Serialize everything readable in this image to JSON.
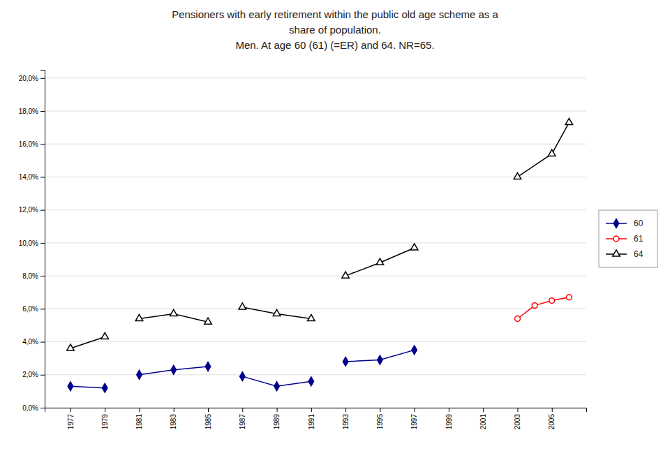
{
  "chart_data": {
    "type": "line",
    "title": "Pensioners with early retirement within the public old age scheme as a\nshare of population.\nMen. At age 60 (61) (=ER) and 64. NR=65.",
    "series": [
      {
        "name": "60",
        "color": "#00008B",
        "marker": "diamond",
        "line_style": "solid",
        "x": [
          1977,
          1979,
          null,
          1981,
          1983,
          1985,
          null,
          1987,
          1989,
          1991,
          null,
          1993,
          1995,
          1997
        ],
        "values": [
          0.013,
          0.012,
          null,
          0.02,
          0.023,
          0.025,
          null,
          0.019,
          0.013,
          0.016,
          null,
          0.028,
          0.029,
          0.035
        ]
      },
      {
        "name": "61",
        "color": "#FF0000",
        "marker": "circle-open",
        "line_style": "solid",
        "x": [
          2003,
          2004,
          2005,
          2006
        ],
        "values": [
          0.054,
          0.062,
          0.065,
          0.067
        ]
      },
      {
        "name": "64",
        "color": "#000000",
        "marker": "triangle-open",
        "line_style": "solid",
        "x": [
          1977,
          1979,
          null,
          1981,
          1983,
          1985,
          null,
          1987,
          1989,
          1991,
          null,
          1993,
          1995,
          1997,
          null,
          2003,
          2005,
          2006
        ],
        "values": [
          0.036,
          0.043,
          null,
          0.054,
          0.057,
          0.052,
          null,
          0.061,
          0.057,
          0.054,
          null,
          0.08,
          0.088,
          0.097,
          null,
          0.14,
          0.154,
          0.173
        ]
      }
    ],
    "xlim": [
      1975.5,
      2007.0
    ],
    "xticks": [
      1977,
      1979,
      1981,
      1983,
      1985,
      1987,
      1989,
      1991,
      1993,
      1995,
      1997,
      1999,
      2001,
      2003,
      2005
    ],
    "ylim": [
      0.0,
      0.205
    ],
    "yticks": [
      {
        "value": 0.0,
        "label": "0,0%"
      },
      {
        "value": 0.02,
        "label": "2,0%"
      },
      {
        "value": 0.04,
        "label": "4,0%"
      },
      {
        "value": 0.06,
        "label": "6,0%"
      },
      {
        "value": 0.08,
        "label": "8,0%"
      },
      {
        "value": 0.1,
        "label": "10,0%"
      },
      {
        "value": 0.12,
        "label": "12,0%"
      },
      {
        "value": 0.14,
        "label": "14,0%"
      },
      {
        "value": 0.16,
        "label": "16,0%"
      },
      {
        "value": 0.18,
        "label": "18,0%"
      },
      {
        "value": 0.2,
        "label": "20,0%"
      }
    ],
    "grid": true,
    "legend": "right"
  }
}
